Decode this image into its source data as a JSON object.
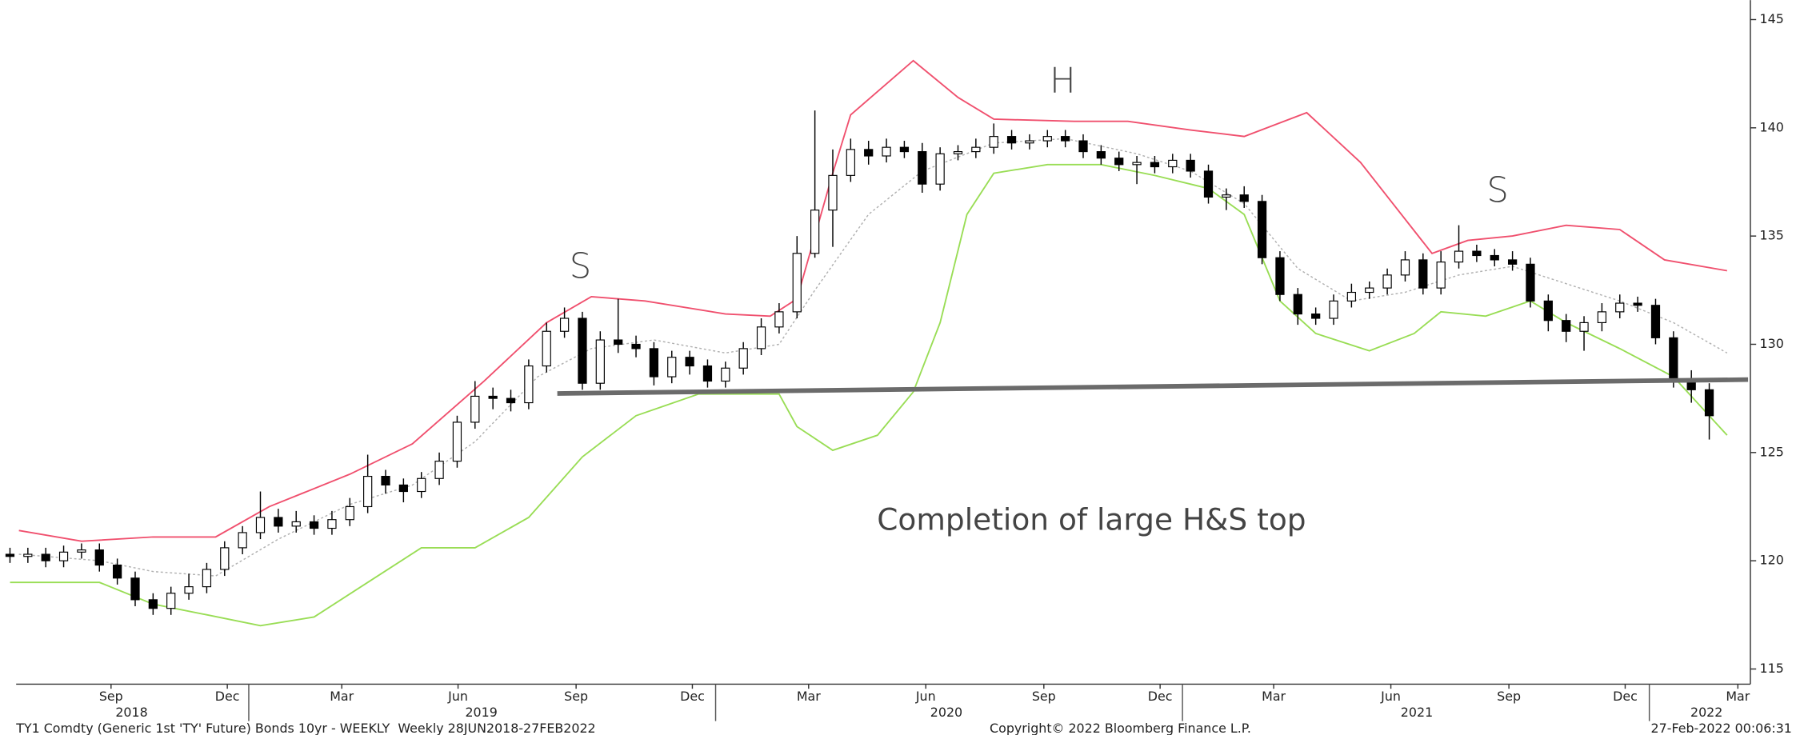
{
  "chart_data": {
    "type": "candlestick",
    "x": [
      0,
      2,
      4,
      6,
      8,
      10,
      12,
      14,
      16,
      18,
      20,
      22,
      24,
      26,
      28,
      30,
      32,
      34,
      36,
      38,
      40,
      42,
      44,
      46,
      48,
      50,
      52,
      54,
      56,
      58,
      60,
      62,
      64,
      66,
      68,
      70,
      72,
      74,
      76,
      78,
      80,
      82,
      84,
      86,
      88,
      90,
      92,
      94,
      96,
      98,
      100,
      102,
      104,
      106,
      108,
      110,
      112,
      114,
      116,
      118,
      120,
      122,
      124,
      126,
      128,
      130,
      132,
      134,
      136,
      138,
      140,
      142,
      144,
      146,
      148,
      150,
      152,
      154,
      156,
      158,
      160,
      162,
      164,
      166,
      168,
      170,
      172,
      174,
      176,
      178,
      180,
      182,
      184,
      186,
      188,
      190
    ],
    "open": [
      120.3,
      120.2,
      120.3,
      120.0,
      120.4,
      120.5,
      119.8,
      119.2,
      118.2,
      117.8,
      118.5,
      118.8,
      119.6,
      120.6,
      121.3,
      122.0,
      121.6,
      121.8,
      121.5,
      121.9,
      122.5,
      123.9,
      123.5,
      123.2,
      123.8,
      124.6,
      126.4,
      127.6,
      127.5,
      127.3,
      129.0,
      130.6,
      131.2,
      128.2,
      130.2,
      130.0,
      129.8,
      128.5,
      129.4,
      129.0,
      128.3,
      128.9,
      129.8,
      130.8,
      131.5,
      134.2,
      136.2,
      137.8,
      139.0,
      138.7,
      139.1,
      138.9,
      137.4,
      138.8,
      138.9,
      139.1,
      139.6,
      139.3,
      139.4,
      139.6,
      139.4,
      138.9,
      138.6,
      138.3,
      138.4,
      138.2,
      138.5,
      138.0,
      136.8,
      136.9,
      136.6,
      134.0,
      132.3,
      131.4,
      131.2,
      132.0,
      132.4,
      132.6,
      133.2,
      133.9,
      132.6,
      133.8,
      134.3,
      134.1,
      133.9,
      133.7,
      132.0,
      131.1,
      130.6,
      131.0,
      131.5,
      131.9,
      131.8,
      130.3,
      128.3,
      127.9
    ],
    "high": [
      120.6,
      120.6,
      120.6,
      120.7,
      120.8,
      120.8,
      120.1,
      119.5,
      118.5,
      118.8,
      119.4,
      119.9,
      120.9,
      121.6,
      123.2,
      122.4,
      122.3,
      122.1,
      122.3,
      122.9,
      124.9,
      124.2,
      123.8,
      124.1,
      125.0,
      126.7,
      128.3,
      128.0,
      127.9,
      129.3,
      131.0,
      131.7,
      131.5,
      130.6,
      132.1,
      130.4,
      130.1,
      129.7,
      129.7,
      129.3,
      129.2,
      130.1,
      131.2,
      131.9,
      135.0,
      140.8,
      139.0,
      139.5,
      139.4,
      139.5,
      139.4,
      139.3,
      139.1,
      139.2,
      139.5,
      140.2,
      139.9,
      139.7,
      139.9,
      139.9,
      139.7,
      139.2,
      138.9,
      138.7,
      138.7,
      138.8,
      138.8,
      138.3,
      137.2,
      137.3,
      136.9,
      134.3,
      132.6,
      131.7,
      132.3,
      132.8,
      132.9,
      133.5,
      134.3,
      134.2,
      134.3,
      135.5,
      134.6,
      134.4,
      134.3,
      134.0,
      132.3,
      131.4,
      131.3,
      131.9,
      132.3,
      132.2,
      132.1,
      130.6,
      128.8,
      128.2
    ],
    "low": [
      119.9,
      119.9,
      119.7,
      119.7,
      120.1,
      119.5,
      118.9,
      117.9,
      117.5,
      117.5,
      118.2,
      118.5,
      119.3,
      120.3,
      121.0,
      121.3,
      121.3,
      121.2,
      121.2,
      121.6,
      122.2,
      123.1,
      122.7,
      122.9,
      123.5,
      124.3,
      126.1,
      127.0,
      126.9,
      127.0,
      128.7,
      130.3,
      127.9,
      127.9,
      129.6,
      129.4,
      128.1,
      128.2,
      128.6,
      128.0,
      128.0,
      128.6,
      129.5,
      130.5,
      131.2,
      134.0,
      134.5,
      137.5,
      138.3,
      138.4,
      138.6,
      137.0,
      137.1,
      138.5,
      138.6,
      138.8,
      139.0,
      139.0,
      139.1,
      139.1,
      138.6,
      138.3,
      138.0,
      137.4,
      137.9,
      137.9,
      137.7,
      136.5,
      136.2,
      136.3,
      133.7,
      132.0,
      130.9,
      130.9,
      130.9,
      131.7,
      132.1,
      132.3,
      132.9,
      132.3,
      132.3,
      133.5,
      133.8,
      133.6,
      133.4,
      131.7,
      130.6,
      130.1,
      129.7,
      130.6,
      131.2,
      131.5,
      130.0,
      128.0,
      127.3,
      125.6
    ],
    "close": [
      120.2,
      120.3,
      120.0,
      120.4,
      120.5,
      119.8,
      119.2,
      118.2,
      117.8,
      118.5,
      118.8,
      119.6,
      120.6,
      121.3,
      122.0,
      121.6,
      121.8,
      121.5,
      121.9,
      122.5,
      123.9,
      123.5,
      123.2,
      123.8,
      124.6,
      126.4,
      127.6,
      127.5,
      127.3,
      129.0,
      130.6,
      131.2,
      128.2,
      130.2,
      130.0,
      129.8,
      128.5,
      129.4,
      129.0,
      128.3,
      128.9,
      129.8,
      130.8,
      131.5,
      134.2,
      136.2,
      137.8,
      139.0,
      138.7,
      139.1,
      138.9,
      137.4,
      138.8,
      138.9,
      139.1,
      139.6,
      139.3,
      139.4,
      139.6,
      139.4,
      138.9,
      138.6,
      138.3,
      138.4,
      138.2,
      138.5,
      138.0,
      136.8,
      136.9,
      136.6,
      134.0,
      132.3,
      131.4,
      131.2,
      132.0,
      132.4,
      132.6,
      133.2,
      133.9,
      132.6,
      133.8,
      134.3,
      134.1,
      133.9,
      133.7,
      132.0,
      131.1,
      130.6,
      131.0,
      131.5,
      131.9,
      131.8,
      130.3,
      128.3,
      127.9,
      126.7
    ],
    "up_color": "#ffffff",
    "down_color": "#000000",
    "bands": [
      {
        "color": "#f0506e",
        "dash": false,
        "x": [
          1,
          8,
          16,
          23,
          29,
          38,
          45,
          53,
          60,
          65,
          71,
          80,
          85,
          88,
          92,
          94,
          101,
          106,
          110,
          119,
          125,
          132,
          138,
          145,
          151,
          159,
          163,
          168,
          174,
          180,
          185,
          192
        ],
        "values": [
          121.4,
          120.9,
          121.1,
          121.1,
          122.5,
          124.0,
          125.4,
          128.3,
          131.0,
          132.2,
          132.0,
          131.4,
          131.3,
          132.1,
          137.9,
          140.6,
          143.1,
          141.4,
          140.4,
          140.3,
          140.3,
          139.9,
          139.6,
          140.7,
          138.4,
          134.2,
          134.8,
          135.0,
          135.5,
          135.3,
          133.9,
          133.4
        ]
      },
      {
        "color": "#b0b0b0",
        "dash": true,
        "x": [
          1,
          10,
          16,
          23,
          30,
          38,
          45,
          52,
          59,
          65,
          72,
          80,
          86,
          90,
          96,
          102,
          110,
          118,
          126,
          132,
          138,
          144,
          150,
          156,
          162,
          168,
          174,
          180,
          186,
          192
        ],
        "values": [
          120.3,
          120.0,
          119.5,
          119.3,
          121.0,
          122.6,
          123.5,
          125.5,
          128.5,
          129.8,
          130.2,
          129.6,
          130.0,
          132.5,
          136.0,
          138.0,
          139.3,
          139.5,
          138.8,
          138.0,
          136.5,
          133.5,
          132.0,
          132.4,
          133.2,
          133.6,
          132.8,
          132.0,
          131.0,
          129.6
        ]
      },
      {
        "color": "#99dd55",
        "dash": false,
        "x": [
          0,
          10,
          16,
          22,
          28,
          34,
          40,
          46,
          52,
          58,
          64,
          70,
          77,
          86,
          88,
          92,
          97,
          101,
          104,
          107,
          110,
          116,
          122,
          128,
          134,
          138,
          142,
          146,
          152,
          157,
          160,
          165,
          170,
          174,
          180,
          186,
          192
        ],
        "values": [
          119.0,
          119.0,
          118.0,
          117.5,
          117.0,
          117.4,
          119.0,
          120.6,
          120.6,
          122.0,
          124.8,
          126.7,
          127.7,
          127.7,
          126.2,
          125.1,
          125.8,
          127.8,
          131.0,
          136.0,
          137.9,
          138.3,
          138.3,
          137.8,
          137.2,
          136.0,
          132.0,
          130.5,
          129.7,
          130.5,
          131.5,
          131.3,
          132.0,
          131.0,
          129.8,
          128.5,
          125.8
        ]
      }
    ],
    "xlim": [
      -0.6,
      194.6
    ],
    "ylim": [
      114.3,
      145.9
    ],
    "yticks": [
      115,
      120,
      125,
      130,
      135,
      140,
      145
    ],
    "xticks": [
      {
        "value": 11.3,
        "label": "Sep"
      },
      {
        "value": 24.3,
        "label": "Dec"
      },
      {
        "value": 37.1,
        "label": "Mar"
      },
      {
        "value": 50.1,
        "label": "Jun"
      },
      {
        "value": 63.3,
        "label": "Sep"
      },
      {
        "value": 76.3,
        "label": "Dec"
      },
      {
        "value": 89.3,
        "label": "Mar"
      },
      {
        "value": 102.4,
        "label": "Jun"
      },
      {
        "value": 115.6,
        "label": "Sep"
      },
      {
        "value": 128.6,
        "label": "Dec"
      },
      {
        "value": 141.3,
        "label": "Mar"
      },
      {
        "value": 154.4,
        "label": "Jun"
      },
      {
        "value": 167.6,
        "label": "Sep"
      },
      {
        "value": 180.6,
        "label": "Dec"
      },
      {
        "value": 193.2,
        "label": "Mar"
      }
    ],
    "year_ticks": [
      {
        "value": 13.6,
        "label": "2018"
      },
      {
        "value": 52.7,
        "label": "2019"
      },
      {
        "value": 104.7,
        "label": "2020"
      },
      {
        "value": 157.3,
        "label": "2021"
      },
      {
        "value": 189.7,
        "label": "2022"
      }
    ],
    "year_separators": [
      26.7,
      78.9,
      131.1,
      183.3
    ],
    "annotations": [
      "S",
      "H",
      "S",
      "Completion of large H&S top"
    ],
    "footer_left": "TY1 Comdty (Generic 1st 'TY' Future) Bonds 10yr - WEEKLY  Weekly 28JUN2018-27FEB2022",
    "footer_center": "Copyright© 2022 Bloomberg Finance L.P.",
    "footer_right": "27-Feb-2022 00:06:31"
  }
}
